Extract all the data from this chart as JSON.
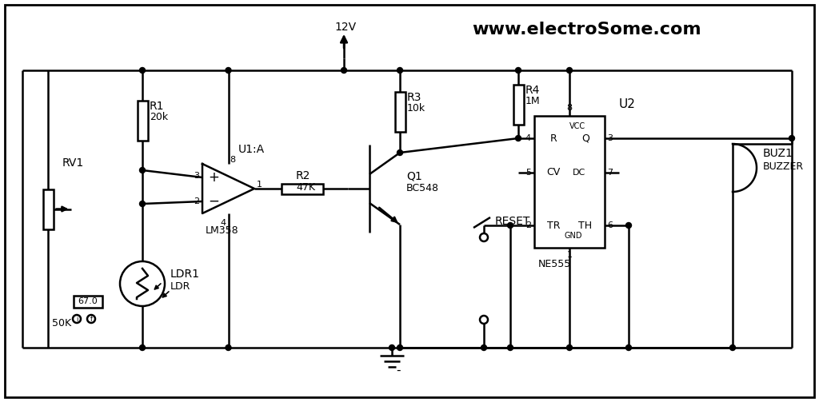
{
  "bg_color": "#ffffff",
  "line_color": "#000000",
  "lw": 1.8,
  "fig_w": 10.24,
  "fig_h": 5.03,
  "website": "www.electroSome.com",
  "vcc_label": "12V",
  "rv1_label": "RV1",
  "rv1_val": "50K",
  "rv1_sim": "67.0",
  "r1_label": "R1",
  "r1_val": "20k",
  "ldr_label": "LDR1",
  "ldr_type": "LDR",
  "oa_label": "U1:A",
  "oa_model": "LM358",
  "r2_label": "R2",
  "r2_val": "47K",
  "q1_label": "Q1",
  "q1_model": "BC548",
  "r3_label": "R3",
  "r3_val": "10k",
  "r4_label": "R4",
  "r4_val": "1M",
  "ic_label": "U2",
  "ic_model": "NE555",
  "buz_label": "BUZ1",
  "buz_type": "BUZZER",
  "rst_label": "RESET"
}
